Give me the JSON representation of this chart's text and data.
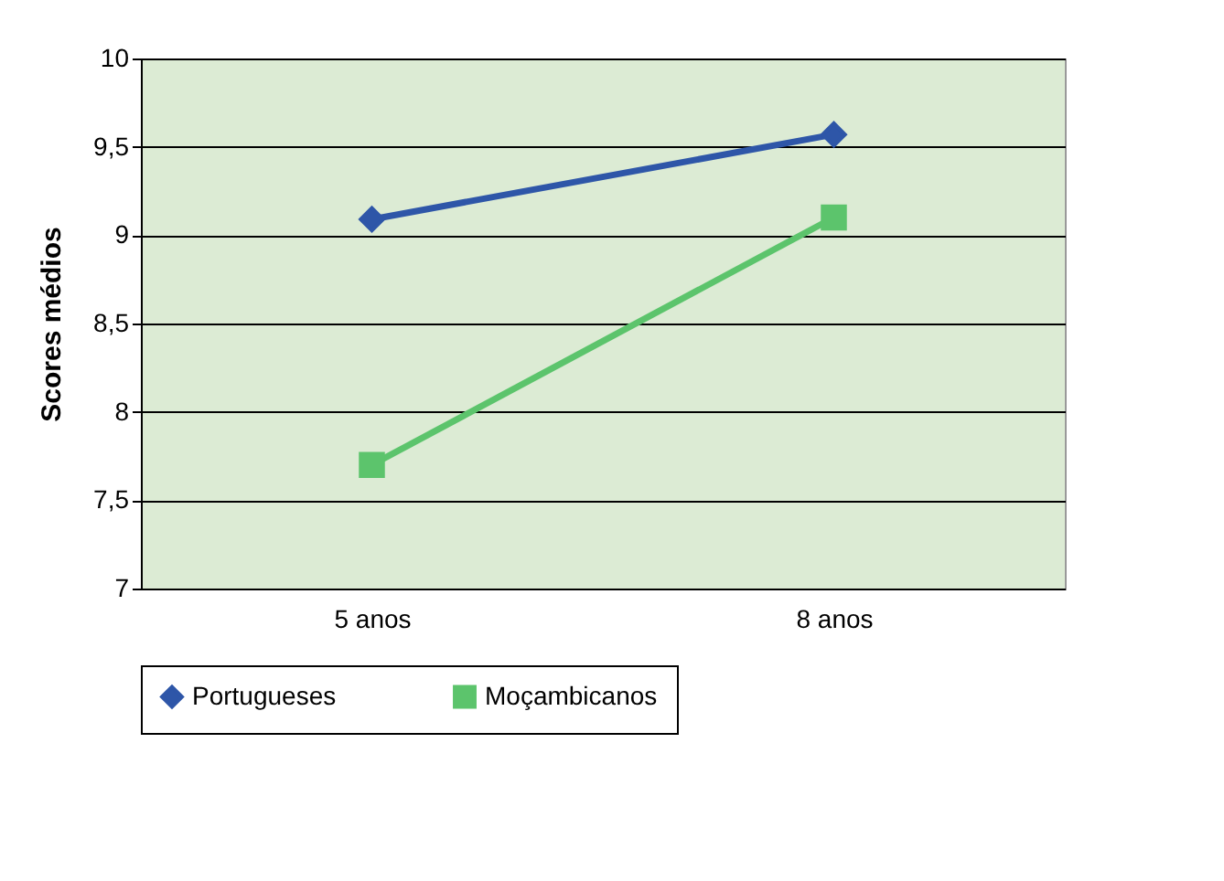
{
  "chart_data": {
    "type": "line",
    "ylabel": "Scores médios",
    "categories": [
      "5 anos",
      "8 anos"
    ],
    "series": [
      {
        "name": "Portugueses",
        "color": "#2e56a8",
        "marker": "diamond",
        "values": [
          9.09,
          9.57
        ]
      },
      {
        "name": "Moçambicanos",
        "color": "#5cc46c",
        "marker": "square",
        "values": [
          7.7,
          9.1
        ]
      }
    ],
    "ylim": [
      7,
      10
    ],
    "yticks": [
      7,
      {
        "value": 7.5,
        "label": "7,5"
      },
      8,
      {
        "value": 8.5,
        "label": "8,5"
      },
      9,
      {
        "value": 9.5,
        "label": "9,5"
      },
      10
    ],
    "grid": "y",
    "legend": "bottom",
    "line_style": "solid"
  }
}
